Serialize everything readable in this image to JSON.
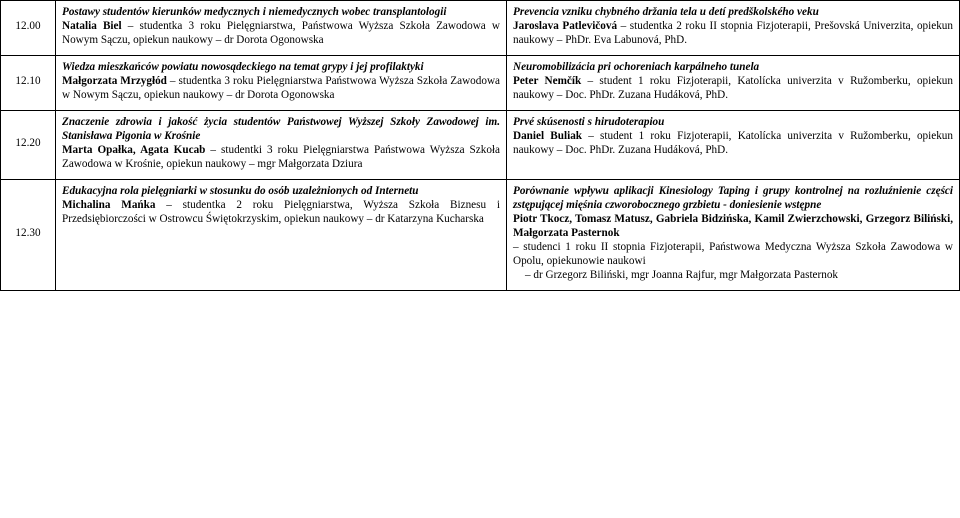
{
  "rows": [
    {
      "time": "12.00",
      "left_title": "Postawy studentów kierunków medycznych i niemedycznych wobec transplantologii",
      "left_author": "Natalia Biel",
      "left_rest": " – studentka 3 roku Pielęgniarstwa, Państwowa Wyższa Szkoła Zawodowa w Nowym Sączu, opiekun naukowy – dr Dorota Ogonowska",
      "right_title": "Prevencia vzniku chybného držania tela u detí predškolského veku",
      "right_author": "Jaroslava Patlevičová",
      "right_rest": " – studentka 2 roku II stopnia  Fizjoterapii, Prešovská Univerzita, opiekun naukowy – PhDr. Eva Labunová, PhD."
    },
    {
      "time": "12.10",
      "left_title": "Wiedza mieszkańców powiatu nowosądeckiego na temat grypy i jej profilaktyki",
      "left_author": "Małgorzata Mrzygłód",
      "left_rest": " – studentka 3 roku Pielęgniarstwa Państwowa Wyższa Szkoła Zawodowa w Nowym Sączu, opiekun naukowy – dr Dorota Ogonowska",
      "right_title": "Neuromobilizácia pri ochoreniach karpálneho tunela",
      "right_author": "Peter Nemčík",
      "right_rest": " – student 1 roku Fizjoterapii, Katolícka univerzita v Ružomberku, opiekun naukowy – Doc. PhDr. Zuzana Hudáková, PhD."
    },
    {
      "time": "12.20",
      "left_title": "Znaczenie zdrowia i jakość życia studentów Państwowej Wyższej Szkoły Zawodowej im. Stanisława Pigonia w Krośnie",
      "left_author": "Marta Opałka, Agata Kucab",
      "left_rest": " – studentki 3 roku Pielęgniarstwa Państwowa Wyższa Szkoła Zawodowa w Krośnie, opiekun naukowy – mgr Małgorzata Dziura",
      "right_title": "Prvé skúsenosti s hirudoterapiou",
      "right_author": "Daniel Buliak",
      "right_rest": " – student 1 roku Fizjoterapii, Katolícka univerzita v Ružomberku, opiekun naukowy – Doc. PhDr. Zuzana Hudáková, PhD."
    },
    {
      "time": "12.30",
      "left_title": "Edukacyjna rola pielęgniarki w stosunku do osób uzależnionych od Internetu",
      "left_author": "Michalina Mańka",
      "left_rest": " – studentka 2 roku Pielęgniarstwa,  Wyższa Szkoła Biznesu i Przedsiębiorczości w Ostrowcu Świętokrzyskim, opiekun naukowy – dr Katarzyna Kucharska",
      "right_title": "Porównanie wpływu aplikacji Kinesiology Taping i grupy kontrolnej na rozluźnienie części zstępującej mięśnia czworobocznego grzbietu - doniesienie wstępne",
      "right_author": "Piotr Tkocz, Tomasz Matusz, Gabriela Bidzińska, Kamil Zwierzchowski, Grzegorz Biliński, Małgorzata Pasternok",
      "right_rest_line1": "– studenci 1 roku II stopnia Fizjoterapii, Państwowa Medyczna Wyższa Szkoła Zawodowa w Opolu, opiekunowie naukowi",
      "right_rest_line2": "–  dr Grzegorz Biliński, mgr Joanna Rajfur, mgr Małgorzata Pasternok"
    }
  ]
}
